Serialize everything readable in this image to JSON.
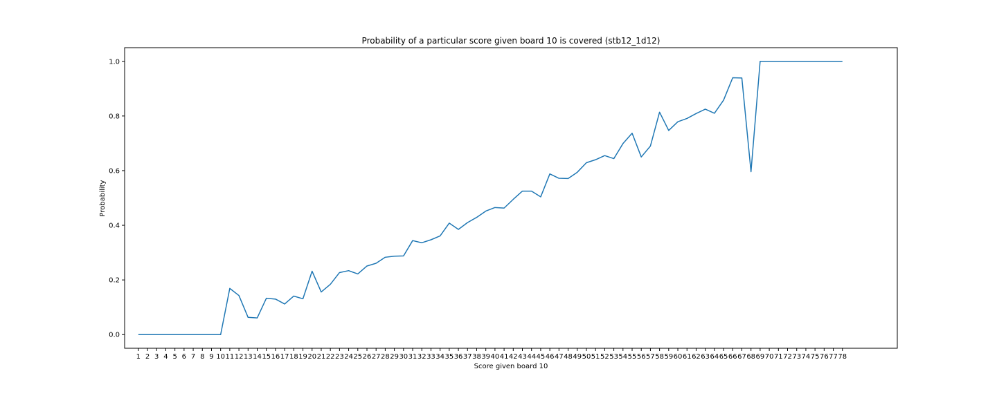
{
  "chart_data": {
    "type": "line",
    "title": "Probability of a particular score given board 10 is covered (stb12_1d12)",
    "xlabel": "Score given board 10",
    "ylabel": "Probability",
    "x": [
      1,
      2,
      3,
      4,
      5,
      6,
      7,
      8,
      9,
      10,
      11,
      12,
      13,
      14,
      15,
      16,
      17,
      18,
      19,
      20,
      21,
      22,
      23,
      24,
      25,
      26,
      27,
      28,
      29,
      30,
      31,
      32,
      33,
      34,
      35,
      36,
      37,
      38,
      39,
      40,
      41,
      42,
      43,
      44,
      45,
      46,
      47,
      48,
      49,
      50,
      51,
      52,
      53,
      54,
      55,
      56,
      57,
      58,
      59,
      60,
      61,
      62,
      63,
      64,
      65,
      66,
      67,
      68,
      69,
      70,
      71,
      72,
      73,
      74,
      75,
      76,
      77,
      78
    ],
    "y": [
      0.0,
      0.0,
      0.0,
      0.0,
      0.0,
      0.0,
      0.0,
      0.0,
      0.0,
      0.0,
      0.169,
      0.143,
      0.063,
      0.061,
      0.133,
      0.13,
      0.112,
      0.141,
      0.131,
      0.232,
      0.156,
      0.184,
      0.227,
      0.234,
      0.222,
      0.251,
      0.261,
      0.283,
      0.287,
      0.288,
      0.344,
      0.336,
      0.347,
      0.361,
      0.408,
      0.385,
      0.41,
      0.429,
      0.452,
      0.465,
      0.463,
      0.495,
      0.525,
      0.525,
      0.504,
      0.588,
      0.572,
      0.571,
      0.594,
      0.629,
      0.64,
      0.655,
      0.644,
      0.699,
      0.737,
      0.65,
      0.69,
      0.814,
      0.747,
      0.779,
      0.791,
      0.809,
      0.825,
      0.81,
      0.858,
      0.94,
      0.939,
      0.596,
      1.0,
      1.0,
      1.0,
      1.0,
      1.0,
      1.0,
      1.0,
      1.0,
      1.0,
      1.0
    ],
    "x_ticks": [
      "1",
      "2",
      "3",
      "4",
      "5",
      "6",
      "7",
      "8",
      "9",
      "10",
      "11",
      "12",
      "13",
      "14",
      "15",
      "16",
      "17",
      "18",
      "19",
      "20",
      "21",
      "22",
      "23",
      "24",
      "25",
      "26",
      "27",
      "28",
      "29",
      "30",
      "31",
      "32",
      "33",
      "34",
      "35",
      "36",
      "37",
      "38",
      "39",
      "40",
      "41",
      "42",
      "43",
      "44",
      "45",
      "46",
      "47",
      "48",
      "49",
      "50",
      "51",
      "52",
      "53",
      "54",
      "55",
      "56",
      "57",
      "58",
      "59",
      "60",
      "61",
      "62",
      "63",
      "64",
      "65",
      "66",
      "67",
      "68",
      "69",
      "70",
      "71",
      "72",
      "73",
      "74",
      "75",
      "76",
      "77",
      "78"
    ],
    "y_ticks": [
      "0.0",
      "0.2",
      "0.4",
      "0.6",
      "0.8",
      "1.0"
    ],
    "y_tick_values": [
      0.0,
      0.2,
      0.4,
      0.6,
      0.8,
      1.0
    ],
    "xlim": [
      -0.5,
      84
    ],
    "ylim": [
      -0.05,
      1.05
    ],
    "grid": false,
    "line_color": "#1f77b4"
  }
}
